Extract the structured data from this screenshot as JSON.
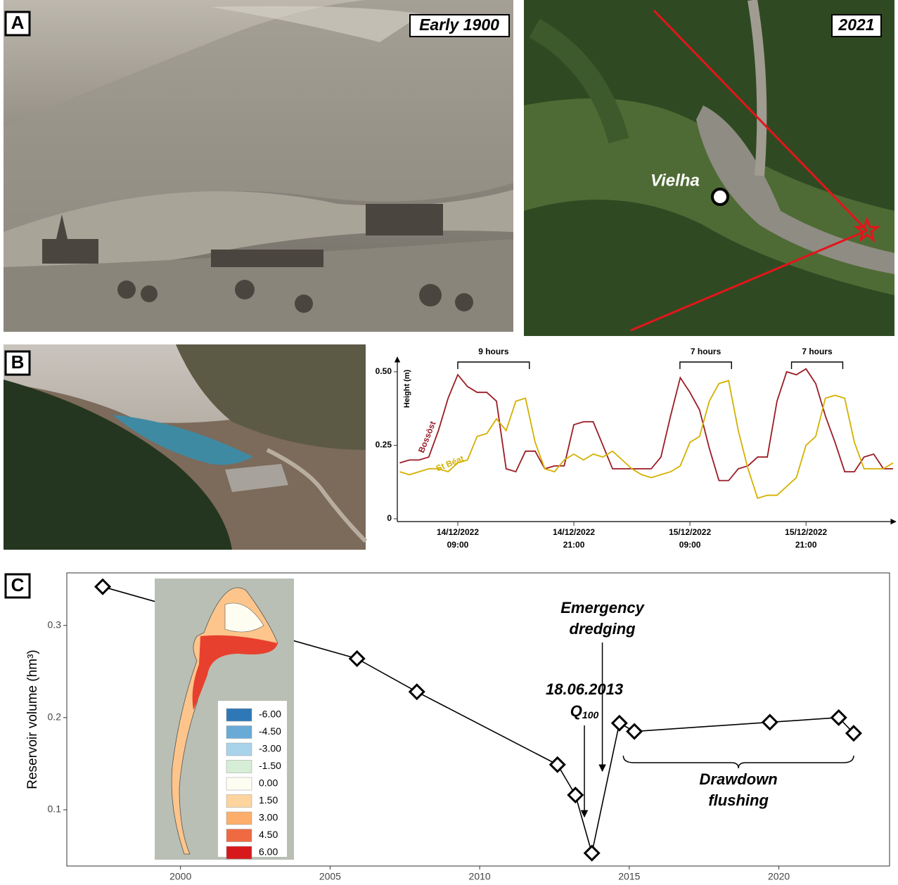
{
  "figure": {
    "panel_labels": [
      "A",
      "B",
      "C"
    ],
    "photo_captions": [
      "Early 1900",
      "2021"
    ],
    "place_label": "Vielha",
    "inset_legend": [
      {
        "label": "-6.00",
        "color": "#2f78b8"
      },
      {
        "label": "-4.50",
        "color": "#6aaad6"
      },
      {
        "label": "-3.00",
        "color": "#a9d3ea"
      },
      {
        "label": "-1.50",
        "color": "#d6eed6"
      },
      {
        "label": "0.00",
        "color": "#fdfdf2"
      },
      {
        "label": "1.50",
        "color": "#fdd49e"
      },
      {
        "label": "3.00",
        "color": "#fdae6b"
      },
      {
        "label": "4.50",
        "color": "#ef6a43"
      },
      {
        "label": "6.00",
        "color": "#d7191c"
      }
    ]
  },
  "chart_data": [
    {
      "type": "line",
      "y_label": "Height (m)",
      "xlim": [
        "2022-12-14 02:45",
        "2022-12-16 06:00"
      ],
      "xticks": [
        {
          "value": "2022-12-14 09:00",
          "label": [
            "14/12/2022",
            "09:00"
          ]
        },
        {
          "value": "2022-12-14 21:00",
          "label": [
            "14/12/2022",
            "21:00"
          ]
        },
        {
          "value": "2022-12-15 09:00",
          "label": [
            "15/12/2022",
            "09:00"
          ]
        },
        {
          "value": "2022-12-15 21:00",
          "label": [
            "15/12/2022",
            "21:00"
          ]
        }
      ],
      "ylim": [
        0,
        0.55
      ],
      "yticks": [
        0,
        0.25,
        {
          "value": 0.5,
          "label": "0.50"
        }
      ],
      "x": [
        "2022-12-14 03:00",
        "2022-12-14 04:00",
        "2022-12-14 05:00",
        "2022-12-14 06:00",
        "2022-12-14 07:00",
        "2022-12-14 08:00",
        "2022-12-14 09:00",
        "2022-12-14 10:00",
        "2022-12-14 11:00",
        "2022-12-14 12:00",
        "2022-12-14 13:00",
        "2022-12-14 14:00",
        "2022-12-14 15:00",
        "2022-12-14 16:00",
        "2022-12-14 17:00",
        "2022-12-14 18:00",
        "2022-12-14 19:00",
        "2022-12-14 20:00",
        "2022-12-14 21:00",
        "2022-12-14 22:00",
        "2022-12-14 23:00",
        "2022-12-15 00:00",
        "2022-12-15 01:00",
        "2022-12-15 02:00",
        "2022-12-15 03:00",
        "2022-12-15 04:00",
        "2022-12-15 05:00",
        "2022-12-15 06:00",
        "2022-12-15 07:00",
        "2022-12-15 08:00",
        "2022-12-15 09:00",
        "2022-12-15 10:00",
        "2022-12-15 11:00",
        "2022-12-15 12:00",
        "2022-12-15 13:00",
        "2022-12-15 14:00",
        "2022-12-15 15:00",
        "2022-12-15 16:00",
        "2022-12-15 17:00",
        "2022-12-15 18:00",
        "2022-12-15 19:00",
        "2022-12-15 20:00",
        "2022-12-15 21:00",
        "2022-12-15 22:00",
        "2022-12-15 23:00",
        "2022-12-16 00:00",
        "2022-12-16 01:00",
        "2022-12-16 02:00",
        "2022-12-16 03:00",
        "2022-12-16 04:00",
        "2022-12-16 05:00",
        "2022-12-16 06:00"
      ],
      "series": [
        {
          "name": "Bossòst",
          "color": "#9b1b25",
          "values": [
            0.19,
            0.2,
            0.2,
            0.21,
            0.3,
            0.41,
            0.49,
            0.45,
            0.43,
            0.43,
            0.4,
            0.17,
            0.16,
            0.23,
            0.23,
            0.17,
            0.18,
            0.18,
            0.32,
            0.33,
            0.33,
            0.25,
            0.17,
            0.17,
            0.17,
            0.17,
            0.17,
            0.21,
            0.35,
            0.48,
            0.43,
            0.37,
            0.24,
            0.13,
            0.13,
            0.17,
            0.18,
            0.21,
            0.21,
            0.4,
            0.5,
            0.49,
            0.51,
            0.46,
            0.35,
            0.26,
            0.16,
            0.16,
            0.21,
            0.22,
            0.17,
            0.17
          ]
        },
        {
          "name": "St Béat",
          "color": "#d4b000",
          "values": [
            0.16,
            0.15,
            0.16,
            0.17,
            0.17,
            0.16,
            0.19,
            0.2,
            0.28,
            0.29,
            0.34,
            0.3,
            0.4,
            0.41,
            0.26,
            0.17,
            0.16,
            0.2,
            0.22,
            0.2,
            0.22,
            0.21,
            0.23,
            0.2,
            0.17,
            0.15,
            0.14,
            0.15,
            0.16,
            0.18,
            0.26,
            0.28,
            0.4,
            0.46,
            0.47,
            0.3,
            0.17,
            0.07,
            0.08,
            0.08,
            0.11,
            0.14,
            0.25,
            0.28,
            0.41,
            0.42,
            0.41,
            0.26,
            0.17,
            0.17,
            0.17,
            0.19
          ]
        }
      ],
      "annotations": [
        {
          "text": "9 hours",
          "start": "2022-12-14 09:00",
          "end": "2022-12-14 16:24"
        },
        {
          "text": "7 hours",
          "start": "2022-12-15 07:58",
          "end": "2022-12-15 13:18"
        },
        {
          "text": "7 hours",
          "start": "2022-12-15 19:30",
          "end": "2022-12-16 00:48"
        }
      ]
    },
    {
      "type": "line",
      "y_label": "Reservoir volume (hm³)",
      "color": "#000000",
      "xlim": [
        1996.2,
        2023.7
      ],
      "xticks": [
        2000,
        2005,
        2010,
        2015,
        2020
      ],
      "ylim": [
        0.039,
        0.357
      ],
      "yticks": [
        0.1,
        0.2,
        0.3
      ],
      "x": [
        1997.4,
        2005.9,
        2007.9,
        2012.6,
        2013.2,
        2013.75,
        2014.67,
        2015.17,
        2019.7,
        2022.0,
        2022.5
      ],
      "values": [
        0.342,
        0.264,
        0.228,
        0.149,
        0.116,
        0.053,
        0.194,
        0.185,
        0.195,
        0.2,
        0.183
      ],
      "annotations": [
        {
          "text": [
            "Emergency",
            "dredging"
          ],
          "x": 2014.1
        },
        {
          "text": [
            "18.06.2013",
            "Q",
            "100"
          ],
          "x": 2013.5
        },
        {
          "text": [
            "Drawdown",
            "flushing"
          ],
          "start": 2014.8,
          "end": 2022.5
        }
      ]
    }
  ]
}
